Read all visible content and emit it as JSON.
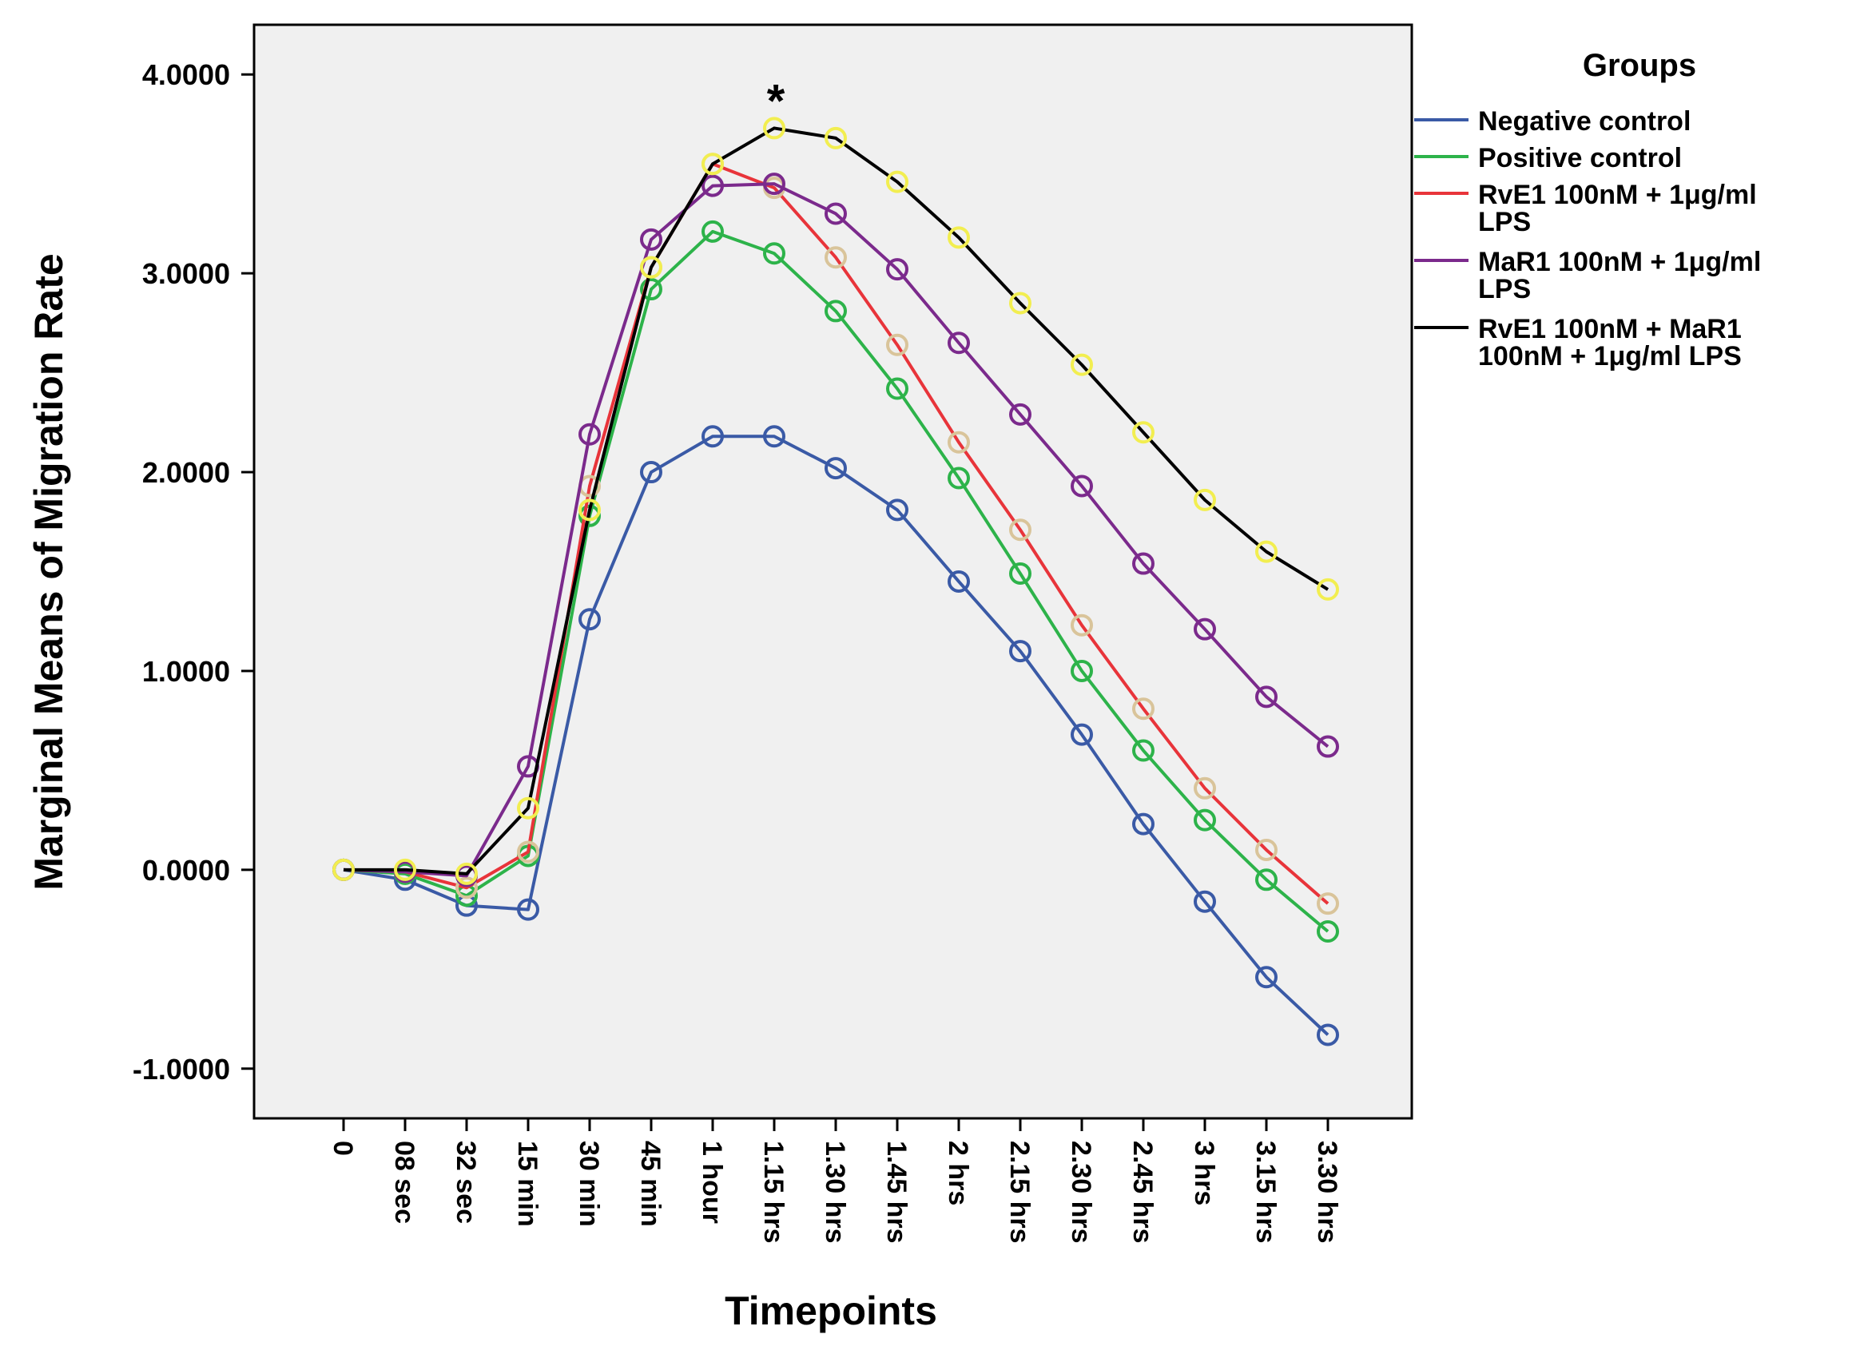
{
  "chart_data": {
    "type": "line",
    "xlabel": "Timepoints",
    "ylabel": "Marginal Means of Migration Rate",
    "ylim": [
      -1.25,
      4.25
    ],
    "yticks": [
      -1.0,
      0.0,
      1.0,
      2.0,
      3.0,
      4.0
    ],
    "ytick_labels": [
      "-1.0000",
      "0.0000",
      "1.0000",
      "2.0000",
      "3.0000",
      "4.0000"
    ],
    "grid": false,
    "background_color": "#f0f0f0",
    "categories": [
      "0",
      "08 sec",
      "32 sec",
      "15 min",
      "30  min",
      "45 min",
      "1 hour",
      "1.15 hrs",
      "1.30 hrs",
      "1.45 hrs",
      "2 hrs",
      "2.15 hrs",
      "2.30 hrs",
      "2.45 hrs",
      "3 hrs",
      "3.15 hrs",
      "3.30 hrs"
    ],
    "legend": {
      "title": "Groups",
      "position": "right"
    },
    "annotation": {
      "text": "*",
      "category": "1.15 hrs"
    },
    "series": [
      {
        "name": "Negative control",
        "label_lines": [
          "Negative control"
        ],
        "color": "#3a5aa6",
        "marker_color": "#3a5aa6",
        "values": [
          0.0,
          -0.05,
          -0.18,
          -0.2,
          1.26,
          2.0,
          2.18,
          2.18,
          2.02,
          1.81,
          1.45,
          1.1,
          0.68,
          0.23,
          -0.16,
          -0.54,
          -0.83
        ]
      },
      {
        "name": "Positive control",
        "label_lines": [
          "Positive control"
        ],
        "color": "#2db34a",
        "marker_color": "#2db34a",
        "values": [
          0.0,
          -0.02,
          -0.13,
          0.07,
          1.78,
          2.92,
          3.21,
          3.1,
          2.81,
          2.42,
          1.97,
          1.49,
          1.0,
          0.6,
          0.25,
          -0.05,
          -0.31
        ]
      },
      {
        "name": "RvE1 100nM + 1μg/ml LPS",
        "label_lines": [
          "RvE1 100nM + 1μg/ml",
          "LPS"
        ],
        "color": "#e8343a",
        "marker_color": "#d9c49a",
        "values": [
          0.0,
          -0.01,
          -0.09,
          0.09,
          1.93,
          3.03,
          3.55,
          3.43,
          3.08,
          2.64,
          2.15,
          1.71,
          1.23,
          0.81,
          0.41,
          0.1,
          -0.17
        ]
      },
      {
        "name": "MaR1 100nM + 1μg/ml LPS",
        "label_lines": [
          "MaR1 100nM + 1μg/ml",
          "LPS"
        ],
        "color": "#7b2a8c",
        "marker_color": "#7b2a8c",
        "values": [
          0.0,
          -0.01,
          -0.03,
          0.52,
          2.19,
          3.17,
          3.44,
          3.45,
          3.3,
          3.02,
          2.65,
          2.29,
          1.93,
          1.54,
          1.21,
          0.87,
          0.62
        ]
      },
      {
        "name": "RvE1 100nM + MaR1 100nM + 1μg/ml LPS",
        "label_lines": [
          "RvE1 100nM + MaR1",
          "100nM + 1μg/ml LPS"
        ],
        "color": "#000000",
        "marker_color": "#f2ee50",
        "values": [
          0.0,
          0.0,
          -0.02,
          0.31,
          1.81,
          3.03,
          3.55,
          3.73,
          3.68,
          3.46,
          3.18,
          2.85,
          2.54,
          2.2,
          1.86,
          1.6,
          1.41
        ]
      }
    ]
  }
}
